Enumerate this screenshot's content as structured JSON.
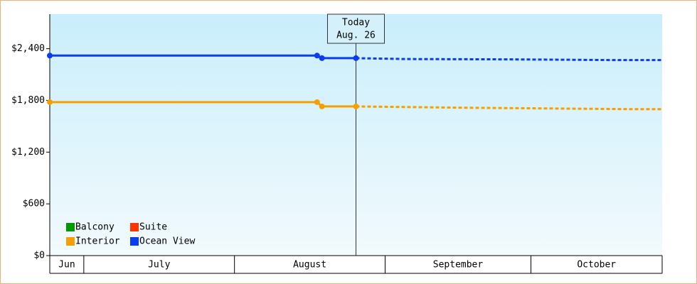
{
  "chart_data": {
    "type": "line",
    "ylim": [
      0,
      2800
    ],
    "yticks": [
      {
        "value": 0,
        "label": "$0"
      },
      {
        "value": 600,
        "label": "$600"
      },
      {
        "value": 1200,
        "label": "$1,200"
      },
      {
        "value": 1800,
        "label": "$1,800"
      },
      {
        "value": 2400,
        "label": "$2,400"
      }
    ],
    "xlim": [
      0,
      126
    ],
    "xticks": [
      0,
      7,
      38,
      69,
      99,
      126
    ],
    "x_bands": [
      "Jun",
      "July",
      "August",
      "September",
      "October"
    ],
    "today": {
      "x": 63,
      "title": "Today",
      "label": "Aug. 26"
    },
    "series": [
      {
        "name": "Balcony",
        "color": "#009900",
        "x": [],
        "values": [],
        "forecast_x": [],
        "forecast_values": []
      },
      {
        "name": "Suite",
        "color": "#ff3300",
        "x": [],
        "values": [],
        "forecast_x": [],
        "forecast_values": []
      },
      {
        "name": "Interior",
        "color": "#f5a000",
        "x": [
          0,
          55,
          56,
          63
        ],
        "values": [
          1780,
          1780,
          1730,
          1730
        ],
        "forecast_x": [
          63,
          72,
          86,
          102,
          119,
          126
        ],
        "forecast_values": [
          1730,
          1724,
          1715,
          1707,
          1699,
          1699
        ]
      },
      {
        "name": "Ocean View",
        "color": "#0a3cf0",
        "x": [
          0,
          55,
          56,
          63
        ],
        "values": [
          2320,
          2320,
          2290,
          2290
        ],
        "forecast_x": [
          63,
          73,
          95,
          116,
          126
        ],
        "forecast_values": [
          2290,
          2280,
          2276,
          2268,
          2268
        ]
      }
    ]
  }
}
